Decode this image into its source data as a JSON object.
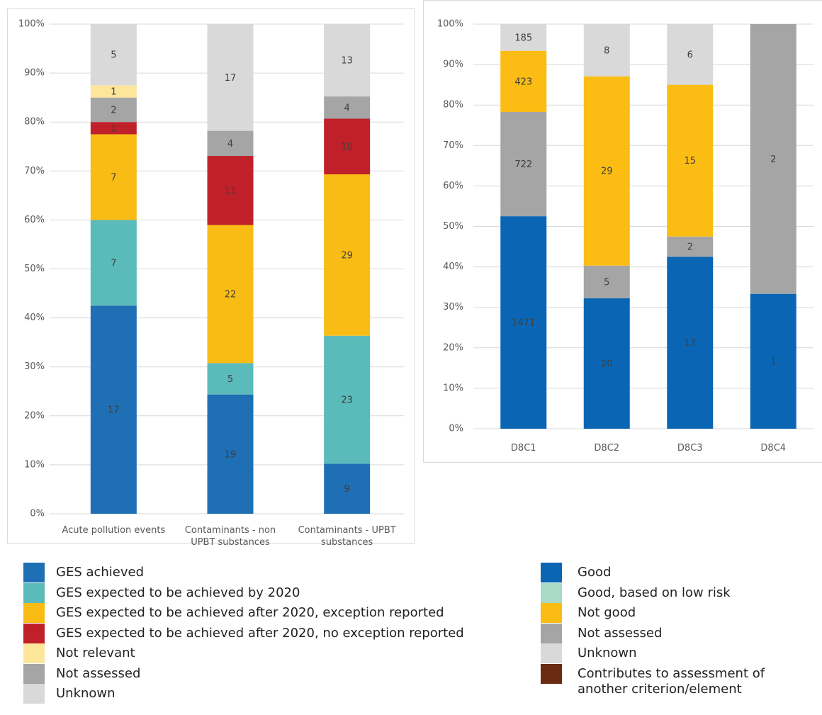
{
  "chart_data": [
    {
      "type": "bar",
      "stacked": "percent",
      "categories": [
        "Acute pollution events",
        "Contaminants - non UPBT substances",
        "Contaminants - UPBT substances"
      ],
      "series": [
        {
          "name": "GES achieved",
          "color": "#1f6fb4",
          "values": [
            17,
            19,
            9
          ]
        },
        {
          "name": "GES expected to be achieved by 2020",
          "color": "#5bbbbb",
          "values": [
            7,
            5,
            23
          ]
        },
        {
          "name": "GES expected to be achieved after 2020, exception reported",
          "color": "#f9bc15",
          "values": [
            7,
            22,
            29
          ]
        },
        {
          "name": "GES expected to be achieved after 2020, no exception reported",
          "color": "#c0202a",
          "values": [
            1,
            11,
            10
          ]
        },
        {
          "name": "Not relevant",
          "color": "#fde59a",
          "values": [
            1,
            null,
            null
          ]
        },
        {
          "name": "Not assessed",
          "color": "#a5a5a5",
          "values": [
            2,
            4,
            4
          ]
        },
        {
          "name": "Unknown",
          "color": "#d9d9d9",
          "values": [
            5,
            17,
            13
          ]
        }
      ],
      "stack_order": [
        0,
        1,
        2,
        3,
        5,
        4,
        6
      ],
      "ylim": [
        0,
        100
      ],
      "yticks": [
        {
          "value": 0,
          "label": "0%"
        },
        {
          "value": 10,
          "label": "10%"
        },
        {
          "value": 20,
          "label": "20%"
        },
        {
          "value": 30,
          "label": "30%"
        },
        {
          "value": 40,
          "label": "40%"
        },
        {
          "value": 50,
          "label": "50%"
        },
        {
          "value": 60,
          "label": "60%"
        },
        {
          "value": 70,
          "label": "70%"
        },
        {
          "value": 80,
          "label": "80%"
        },
        {
          "value": 90,
          "label": "90%"
        },
        {
          "value": 100,
          "label": "100%"
        }
      ],
      "grid": true
    },
    {
      "type": "bar",
      "stacked": "percent",
      "categories": [
        "D8C1",
        "D8C2",
        "D8C3",
        "D8C4"
      ],
      "series": [
        {
          "name": "Good",
          "color": "#0a66b5",
          "values": [
            1471,
            20,
            17,
            1
          ]
        },
        {
          "name": "Good, based on low risk",
          "color": "#a8dac6",
          "values": [
            null,
            null,
            null,
            null
          ]
        },
        {
          "name": "Not good",
          "color": "#fbbc13",
          "values": [
            423,
            29,
            15,
            null
          ]
        },
        {
          "name": "Not assessed",
          "color": "#a5a5a5",
          "values": [
            722,
            5,
            2,
            2
          ]
        },
        {
          "name": "Unknown",
          "color": "#d9d9d9",
          "values": [
            185,
            8,
            6,
            null
          ]
        },
        {
          "name": "Contributes to assessment of another criterion/element",
          "color": "#6b2a14",
          "values": [
            null,
            null,
            null,
            null
          ]
        }
      ],
      "stack_order": [
        0,
        1,
        3,
        2,
        4,
        5
      ],
      "ylim": [
        0,
        100
      ],
      "yticks": [
        {
          "value": 0,
          "label": "0%"
        },
        {
          "value": 10,
          "label": "10%"
        },
        {
          "value": 20,
          "label": "20%"
        },
        {
          "value": 30,
          "label": "30%"
        },
        {
          "value": 40,
          "label": "40%"
        },
        {
          "value": 50,
          "label": "50%"
        },
        {
          "value": 60,
          "label": "60%"
        },
        {
          "value": 70,
          "label": "70%"
        },
        {
          "value": 80,
          "label": "80%"
        },
        {
          "value": 90,
          "label": "90%"
        },
        {
          "value": 100,
          "label": "100%"
        }
      ],
      "grid": true
    }
  ]
}
